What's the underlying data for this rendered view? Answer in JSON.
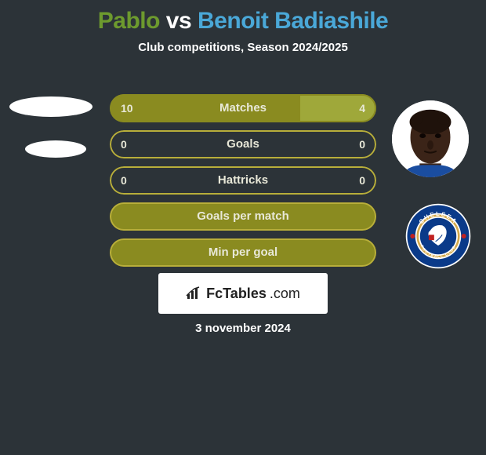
{
  "title": {
    "player1": "Pablo",
    "vs": "vs",
    "player2": "Benoit Badiashile",
    "player1_color": "#6d9a2e",
    "vs_color": "#ffffff",
    "player2_color": "#4aa8d8"
  },
  "subtitle": "Club competitions, Season 2024/2025",
  "subtitle_color": "#ffffff",
  "background_color": "#2c3338",
  "bar_total_width": 340,
  "stats": [
    {
      "label": "Matches",
      "left_val": "10",
      "right_val": "4",
      "left_pct": 71.4,
      "right_pct": 28.6,
      "left_color": "#8a8b20",
      "right_color": "#9fa83a",
      "border_color": "#8a8b20"
    },
    {
      "label": "Goals",
      "left_val": "0",
      "right_val": "0",
      "left_pct": 0,
      "right_pct": 0,
      "left_color": "#8a8b20",
      "right_color": "#9fa83a",
      "border_color": "#b8ae3a"
    },
    {
      "label": "Hattricks",
      "left_val": "0",
      "right_val": "0",
      "left_pct": 0,
      "right_pct": 0,
      "left_color": "#8a8b20",
      "right_color": "#9fa83a",
      "border_color": "#b8ae3a"
    },
    {
      "label": "Goals per match",
      "left_val": "",
      "right_val": "",
      "left_pct": 100,
      "right_pct": 0,
      "left_color": "#8a8b20",
      "right_color": "#9fa83a",
      "border_color": "#b8ae3a"
    },
    {
      "label": "Min per goal",
      "left_val": "",
      "right_val": "",
      "left_pct": 100,
      "right_pct": 0,
      "left_color": "#8a8b20",
      "right_color": "#9fa83a",
      "border_color": "#b8ae3a"
    }
  ],
  "logo": {
    "brand": "FcTables",
    "tld": ".com",
    "icon": "bar-chart-icon",
    "background": "#ffffff",
    "text_color": "#222222"
  },
  "date": "3 november 2024",
  "right_player_avatar": {
    "skin": "#3b2418",
    "shadow": "#1f120b"
  },
  "club": {
    "name": "CHELSEA",
    "subtext": "FOOTBALL CLUB",
    "outer": "#ffffff",
    "ring": "#d4a84a",
    "body": "#0a3a89",
    "center_emblem": "#0a3a89"
  }
}
